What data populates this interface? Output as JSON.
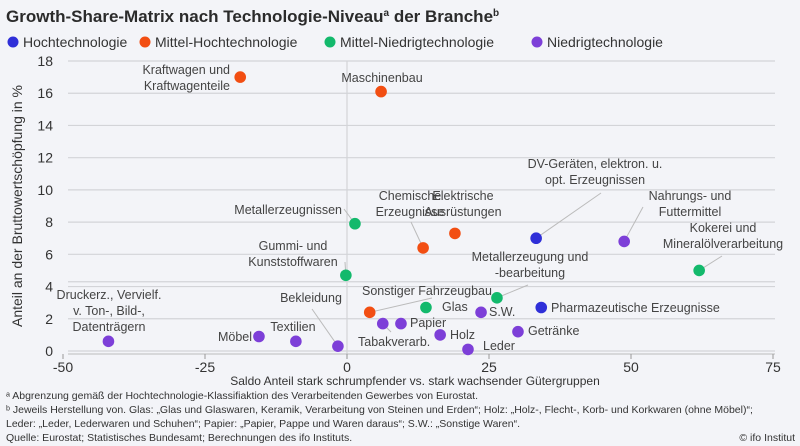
{
  "chart_data": {
    "type": "scatter",
    "title": "Growth-Share-Matrix nach Technologie-Niveau",
    "title_sup_a": "a",
    "title_mid": " der Branche",
    "title_sup_b": "b",
    "xlabel": "Saldo Anteil stark schrumpfender vs. stark wachsender Gütergruppen",
    "ylabel": "Anteil an der Bruttowertschöpfung in %",
    "xlim": [
      -50,
      75
    ],
    "ylim": [
      0,
      18
    ],
    "xticks": [
      "-50",
      "-25",
      "0",
      "25",
      "50",
      "75"
    ],
    "yticks": [
      "0",
      "2",
      "4",
      "6",
      "8",
      "10",
      "12",
      "14",
      "16",
      "18"
    ],
    "grid": "horizontal",
    "legend_position": "top",
    "reference_lines": {
      "x": 0,
      "y": 4.3
    },
    "series": [
      {
        "name": "Hochtechnologie",
        "color": "#2f2fd8"
      },
      {
        "name": "Mittel-Hochtechnologie",
        "color": "#f24e12"
      },
      {
        "name": "Mittel-Niedrigtechnologie",
        "color": "#13b96c"
      },
      {
        "name": "Niedrigtechnologie",
        "color": "#7d3fd8"
      }
    ],
    "points": [
      {
        "label": [
          "Kraftwagen und",
          "Kraftwagenteile"
        ],
        "series": 1,
        "x": -18.8,
        "y": 17.0
      },
      {
        "label": [
          "Maschinenbau"
        ],
        "series": 1,
        "x": 6.0,
        "y": 16.1
      },
      {
        "label": [
          "Metallerzeugnissen"
        ],
        "series": 2,
        "x": 1.4,
        "y": 7.9
      },
      {
        "label": [
          "Chemische",
          "Erzeugnisse"
        ],
        "series": 1,
        "x": 13.4,
        "y": 6.4
      },
      {
        "label": [
          "Elektrische",
          "Ausrüstungen"
        ],
        "series": 1,
        "x": 19.0,
        "y": 7.3
      },
      {
        "label": [
          "DV-Geräten, elektron. u.",
          "opt. Erzeugnissen"
        ],
        "series": 0,
        "x": 33.3,
        "y": 7.0
      },
      {
        "label": [
          "Nahrungs- und",
          "Futtermittel"
        ],
        "series": 3,
        "x": 48.8,
        "y": 6.8
      },
      {
        "label": [
          "Kokerei und",
          "Mineralölverarbeitung"
        ],
        "series": 2,
        "x": 62.0,
        "y": 5.0
      },
      {
        "label": [
          "Gummi- und",
          "Kunststoffwaren"
        ],
        "series": 2,
        "x": -0.2,
        "y": 4.7
      },
      {
        "label": [
          "Metallerzeugung und",
          "-bearbeitung"
        ],
        "series": 2,
        "x": 26.4,
        "y": 3.3
      },
      {
        "label": [
          "Sonstiger Fahrzeugbau"
        ],
        "series": 1,
        "x": 4.0,
        "y": 2.4
      },
      {
        "label": [
          "Glas"
        ],
        "series": 2,
        "x": 13.9,
        "y": 2.7
      },
      {
        "label": [
          "S.W."
        ],
        "series": 3,
        "x": 23.6,
        "y": 2.4
      },
      {
        "label": [
          "Pharmazeutische Erzeugnisse"
        ],
        "series": 0,
        "x": 34.2,
        "y": 2.7
      },
      {
        "label": [
          "Papier"
        ],
        "series": 3,
        "x": 9.5,
        "y": 1.7
      },
      {
        "label": [
          "Tabakverarb."
        ],
        "series": 3,
        "x": 6.3,
        "y": 1.7
      },
      {
        "label": [
          "Holz"
        ],
        "series": 3,
        "x": 16.4,
        "y": 1.0
      },
      {
        "label": [
          "Getränke"
        ],
        "series": 3,
        "x": 30.1,
        "y": 1.2
      },
      {
        "label": [
          "Leder"
        ],
        "series": 3,
        "x": 21.3,
        "y": 0.1
      },
      {
        "label": [
          "Bekleidung"
        ],
        "series": 3,
        "x": -1.6,
        "y": 0.3
      },
      {
        "label": [
          "Textilien"
        ],
        "series": 3,
        "x": -9.0,
        "y": 0.6
      },
      {
        "label": [
          "Möbel"
        ],
        "series": 3,
        "x": -15.5,
        "y": 0.9
      },
      {
        "label": [
          "Druckerz., Vervielf.",
          "v. Ton-, Bild-,",
          "Datenträgern"
        ],
        "series": 3,
        "x": -42.0,
        "y": 0.6
      }
    ]
  },
  "footnotes": [
    "ᵃ Abgrenzung gemäß der Hochtechnologie-Klassifiaktion des Verarbeitenden Gewerbes von Eurostat.",
    "ᵇ Jeweils Herstellung von. Glas: „Glas und Glaswaren, Keramik, Verarbeitung von Steinen und Erden“; Holz: „Holz-, Flecht-, Korb- und Korkwaren (ohne Möbel)“;",
    "Leder: „Leder, Lederwaren und Schuhen“; Papier: „Papier, Pappe und Waren daraus“; S.W.: „Sonstige Waren“."
  ],
  "source": "Quelle: Eurostat; Statistisches Bundesamt; Berechnungen des ifo Instituts.",
  "copyright": "© ifo Institut"
}
